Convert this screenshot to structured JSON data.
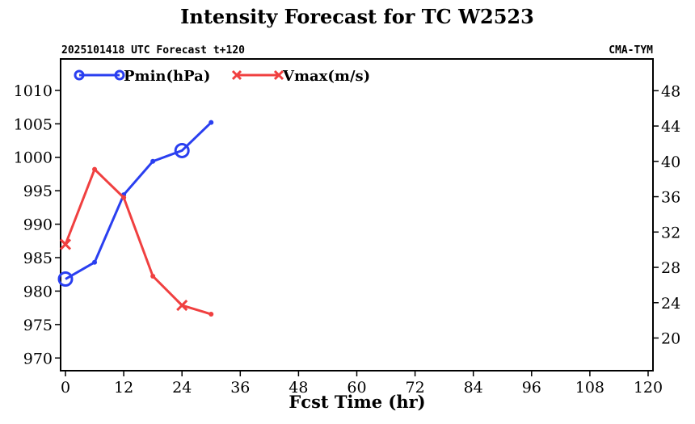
{
  "chart_data": {
    "type": "line",
    "title": "Intensity Forecast for TC W2523",
    "subtitle_left": "2025101418 UTC Forecast t+120",
    "subtitle_right": "CMA-TYM",
    "xlabel": "Fcst Time (hr)",
    "xlim": [
      -1,
      121
    ],
    "xticks": [
      0,
      12,
      24,
      36,
      48,
      60,
      72,
      84,
      96,
      108,
      120
    ],
    "ylim_left": [
      968.1,
      1011.8
    ],
    "yticks_left": [
      970,
      975,
      980,
      985,
      990,
      995,
      1000,
      1005,
      1010
    ],
    "ylim_right": [
      16.3,
      49.4
    ],
    "yticks_right": [
      20,
      24,
      28,
      32,
      36,
      40,
      44,
      48
    ],
    "grid": false,
    "legend_position": "top-left",
    "x": [
      0,
      6,
      12,
      18,
      24,
      30
    ],
    "series": [
      {
        "name": "Pmin(hPa)",
        "axis": "left",
        "color": "#2a3ff0",
        "marker": "circle",
        "values": [
          981.8,
          984.3,
          994.4,
          999.4,
          1001.0,
          1005.2
        ]
      },
      {
        "name": "Vmax(m/s)",
        "axis": "right",
        "color": "#f04040",
        "marker": "x",
        "values": [
          30.6,
          39.1,
          35.9,
          27.0,
          23.7,
          22.7
        ]
      }
    ]
  }
}
